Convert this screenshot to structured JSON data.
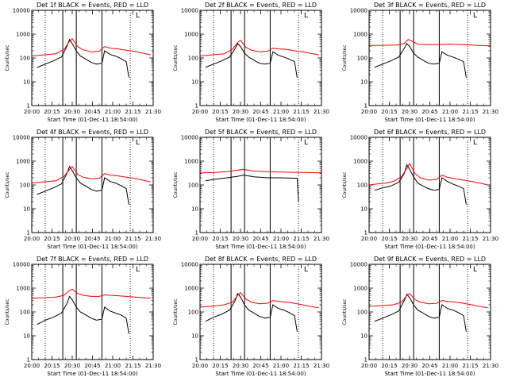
{
  "chart_data": {
    "type": "line",
    "layout": "3x3 grid",
    "xlabel": "Start Time (01-Dec-11 18:54:00)",
    "ylabel": "Counts/sec",
    "y_scale": "log",
    "ylim": [
      1,
      10000
    ],
    "y_ticks": [
      1,
      10,
      100,
      1000,
      10000
    ],
    "y_tick_labels": [
      "1",
      "10",
      "100",
      "1000",
      "10000"
    ],
    "xlim": [
      "20:00",
      "21:30"
    ],
    "x_ticks": [
      "20:00",
      "20:15",
      "20:30",
      "20:45",
      "21:00",
      "21:15",
      "21:30"
    ],
    "x_tick_labels": [
      "20:00",
      "20:15",
      "20:30",
      "20:45",
      "21:00",
      "21:15",
      "21:30"
    ],
    "corner_label": "L",
    "series_colors": {
      "events": "#000000",
      "lld": "#ff0000"
    },
    "marker_lines": [
      {
        "time": "20:10",
        "style": "dotted"
      },
      {
        "time": "20:23",
        "style": "solid"
      },
      {
        "time": "20:33",
        "style": "solid"
      },
      {
        "time": "20:52",
        "style": "solid"
      },
      {
        "time": "21:13",
        "style": "dotted"
      }
    ],
    "panels": [
      {
        "title": "Det 1f BLACK = Events, RED = LLD",
        "series": [
          {
            "color": "#000000",
            "x": [
              "20:04",
              "20:10",
              "20:16",
              "20:22",
              "20:26",
              "20:28",
              "20:30",
              "20:33",
              "20:36",
              "20:40",
              "20:44",
              "20:48",
              "20:52",
              "20:54",
              "20:58",
              "21:02",
              "21:06",
              "21:10",
              "21:12"
            ],
            "y": [
              40,
              55,
              75,
              110,
              300,
              600,
              400,
              200,
              120,
              90,
              65,
              55,
              60,
              200,
              140,
              120,
              95,
              70,
              15
            ]
          },
          {
            "color": "#ff0000",
            "x": [
              "20:00",
              "20:06",
              "20:12",
              "20:18",
              "20:24",
              "20:28",
              "20:30",
              "20:34",
              "20:38",
              "20:44",
              "20:50",
              "20:54",
              "20:58",
              "21:04",
              "21:10",
              "21:16",
              "21:22",
              "21:28"
            ],
            "y": [
              120,
              130,
              140,
              150,
              230,
              500,
              650,
              300,
              220,
              180,
              190,
              300,
              260,
              240,
              210,
              190,
              160,
              135
            ]
          }
        ]
      },
      {
        "title": "Det 2f BLACK = Events, RED = LLD",
        "series": [
          {
            "color": "#000000",
            "x": [
              "20:04",
              "20:10",
              "20:16",
              "20:22",
              "20:26",
              "20:28",
              "20:30",
              "20:33",
              "20:36",
              "20:40",
              "20:44",
              "20:48",
              "20:52",
              "20:54",
              "20:58",
              "21:02",
              "21:06",
              "21:10",
              "21:12"
            ],
            "y": [
              40,
              55,
              75,
              110,
              250,
              400,
              300,
              160,
              110,
              80,
              60,
              55,
              60,
              180,
              130,
              110,
              90,
              70,
              15
            ]
          },
          {
            "color": "#ff0000",
            "x": [
              "20:00",
              "20:06",
              "20:12",
              "20:18",
              "20:24",
              "20:28",
              "20:30",
              "20:34",
              "20:38",
              "20:44",
              "20:50",
              "20:54",
              "20:58",
              "21:04",
              "21:10",
              "21:16",
              "21:22",
              "21:28"
            ],
            "y": [
              120,
              130,
              140,
              150,
              230,
              450,
              550,
              280,
              210,
              180,
              190,
              260,
              240,
              230,
              200,
              180,
              155,
              135
            ]
          }
        ]
      },
      {
        "title": "Det 3f BLACK = Events, RED = LLD",
        "series": [
          {
            "color": "#000000",
            "x": [
              "20:04",
              "20:10",
              "20:16",
              "20:22",
              "20:26",
              "20:28",
              "20:30",
              "20:33",
              "20:36",
              "20:40",
              "20:44",
              "20:48",
              "20:52",
              "20:54",
              "20:58",
              "21:02",
              "21:06",
              "21:10",
              "21:12"
            ],
            "y": [
              40,
              55,
              75,
              110,
              250,
              400,
              300,
              160,
              110,
              80,
              60,
              55,
              60,
              180,
              130,
              110,
              90,
              70,
              15
            ]
          },
          {
            "color": "#ff0000",
            "x": [
              "20:00",
              "20:10",
              "20:20",
              "20:26",
              "20:29",
              "20:32",
              "20:36",
              "20:44",
              "20:52",
              "21:00",
              "21:10",
              "21:20",
              "21:30"
            ],
            "y": [
              330,
              340,
              350,
              400,
              600,
              500,
              380,
              360,
              370,
              380,
              360,
              340,
              320
            ]
          }
        ]
      },
      {
        "title": "Det 4f BLACK = Events, RED = LLD",
        "series": [
          {
            "color": "#000000",
            "x": [
              "20:04",
              "20:10",
              "20:16",
              "20:22",
              "20:26",
              "20:28",
              "20:30",
              "20:33",
              "20:36",
              "20:40",
              "20:44",
              "20:48",
              "20:52",
              "20:54",
              "20:58",
              "21:02",
              "21:06",
              "21:10",
              "21:12"
            ],
            "y": [
              40,
              55,
              75,
              110,
              300,
              600,
              400,
              200,
              120,
              90,
              65,
              55,
              60,
              200,
              140,
              120,
              95,
              70,
              15
            ]
          },
          {
            "color": "#ff0000",
            "x": [
              "20:00",
              "20:06",
              "20:12",
              "20:18",
              "20:24",
              "20:28",
              "20:30",
              "20:34",
              "20:38",
              "20:44",
              "20:50",
              "20:54",
              "20:58",
              "21:04",
              "21:10",
              "21:16",
              "21:22",
              "21:28"
            ],
            "y": [
              120,
              130,
              140,
              150,
              230,
              450,
              600,
              280,
              210,
              180,
              190,
              300,
              260,
              240,
              210,
              190,
              160,
              135
            ]
          }
        ]
      },
      {
        "title": "Det 5f BLACK = Events, RED = LLD",
        "series": [
          {
            "color": "#000000",
            "x": [
              "20:04",
              "20:10",
              "20:20",
              "20:28",
              "20:32",
              "20:40",
              "20:50",
              "21:00",
              "21:12",
              "21:13"
            ],
            "y": [
              150,
              170,
              200,
              230,
              260,
              220,
              200,
              200,
              190,
              20
            ]
          },
          {
            "color": "#ff0000",
            "x": [
              "20:00",
              "20:10",
              "20:20",
              "20:28",
              "20:32",
              "20:40",
              "20:50",
              "21:00",
              "21:10",
              "21:20",
              "21:30"
            ],
            "y": [
              320,
              330,
              360,
              420,
              450,
              380,
              360,
              350,
              340,
              330,
              320
            ]
          }
        ]
      },
      {
        "title": "Det 6f BLACK = Events, RED = LLD",
        "series": [
          {
            "color": "#000000",
            "x": [
              "20:04",
              "20:10",
              "20:16",
              "20:22",
              "20:26",
              "20:28",
              "20:30",
              "20:33",
              "20:36",
              "20:40",
              "20:44",
              "20:48",
              "20:52",
              "20:54",
              "20:58",
              "21:02",
              "21:06",
              "21:10",
              "21:12"
            ],
            "y": [
              60,
              75,
              90,
              130,
              300,
              700,
              450,
              220,
              120,
              90,
              70,
              60,
              65,
              200,
              140,
              110,
              90,
              70,
              15
            ]
          },
          {
            "color": "#ff0000",
            "x": [
              "20:00",
              "20:06",
              "20:12",
              "20:18",
              "20:24",
              "20:28",
              "20:30",
              "20:34",
              "20:38",
              "20:44",
              "20:50",
              "20:54",
              "20:58",
              "21:04",
              "21:10",
              "21:16",
              "21:22",
              "21:28"
            ],
            "y": [
              100,
              110,
              120,
              140,
              220,
              500,
              800,
              300,
              200,
              160,
              170,
              260,
              210,
              180,
              160,
              140,
              120,
              100
            ]
          }
        ]
      },
      {
        "title": "Det 7f BLACK = Events, RED = LLD",
        "series": [
          {
            "color": "#000000",
            "x": [
              "20:04",
              "20:10",
              "20:16",
              "20:22",
              "20:26",
              "20:28",
              "20:30",
              "20:33",
              "20:36",
              "20:40",
              "20:44",
              "20:48",
              "20:52",
              "20:54",
              "20:58",
              "21:02",
              "21:06",
              "21:10",
              "21:12"
            ],
            "y": [
              30,
              45,
              60,
              90,
              220,
              450,
              320,
              160,
              100,
              75,
              55,
              45,
              50,
              160,
              110,
              90,
              75,
              55,
              12
            ]
          },
          {
            "color": "#ff0000",
            "x": [
              "20:00",
              "20:06",
              "20:12",
              "20:18",
              "20:24",
              "20:28",
              "20:30",
              "20:34",
              "20:38",
              "20:44",
              "20:50",
              "20:54",
              "20:58",
              "21:04",
              "21:10",
              "21:16",
              "21:22",
              "21:28"
            ],
            "y": [
              380,
              390,
              400,
              420,
              500,
              800,
              900,
              600,
              500,
              450,
              450,
              520,
              500,
              480,
              450,
              420,
              400,
              380
            ]
          }
        ]
      },
      {
        "title": "Det 8f BLACK = Events, RED = LLD",
        "series": [
          {
            "color": "#000000",
            "x": [
              "20:04",
              "20:10",
              "20:16",
              "20:22",
              "20:26",
              "20:28",
              "20:30",
              "20:33",
              "20:36",
              "20:40",
              "20:44",
              "20:48",
              "20:52",
              "20:54",
              "20:58",
              "21:02",
              "21:06",
              "21:10",
              "21:12"
            ],
            "y": [
              40,
              60,
              80,
              120,
              300,
              600,
              420,
              200,
              120,
              90,
              65,
              55,
              60,
              200,
              140,
              120,
              95,
              70,
              15
            ]
          },
          {
            "color": "#ff0000",
            "x": [
              "20:00",
              "20:06",
              "20:12",
              "20:18",
              "20:24",
              "20:28",
              "20:30",
              "20:34",
              "20:38",
              "20:44",
              "20:50",
              "20:54",
              "20:58",
              "21:04",
              "21:10",
              "21:16",
              "21:22",
              "21:28"
            ],
            "y": [
              160,
              170,
              180,
              200,
              260,
              500,
              650,
              350,
              260,
              220,
              230,
              300,
              280,
              260,
              230,
              200,
              170,
              150
            ]
          }
        ]
      },
      {
        "title": "Det 9f BLACK = Events, RED = LLD",
        "series": [
          {
            "color": "#000000",
            "x": [
              "20:04",
              "20:10",
              "20:16",
              "20:22",
              "20:26",
              "20:28",
              "20:30",
              "20:33",
              "20:36",
              "20:40",
              "20:44",
              "20:48",
              "20:52",
              "20:54",
              "20:58",
              "21:02",
              "21:06",
              "21:10",
              "21:12"
            ],
            "y": [
              40,
              55,
              75,
              110,
              300,
              550,
              400,
              200,
              120,
              90,
              65,
              55,
              60,
              200,
              140,
              120,
              95,
              70,
              15
            ]
          },
          {
            "color": "#ff0000",
            "x": [
              "20:00",
              "20:06",
              "20:12",
              "20:18",
              "20:24",
              "20:28",
              "20:30",
              "20:34",
              "20:38",
              "20:44",
              "20:50",
              "20:54",
              "20:58",
              "21:04",
              "21:10",
              "21:16",
              "21:22",
              "21:28"
            ],
            "y": [
              170,
              180,
              190,
              200,
              260,
              500,
              600,
              330,
              260,
              220,
              230,
              300,
              280,
              260,
              230,
              200,
              170,
              150
            ]
          }
        ]
      }
    ]
  }
}
